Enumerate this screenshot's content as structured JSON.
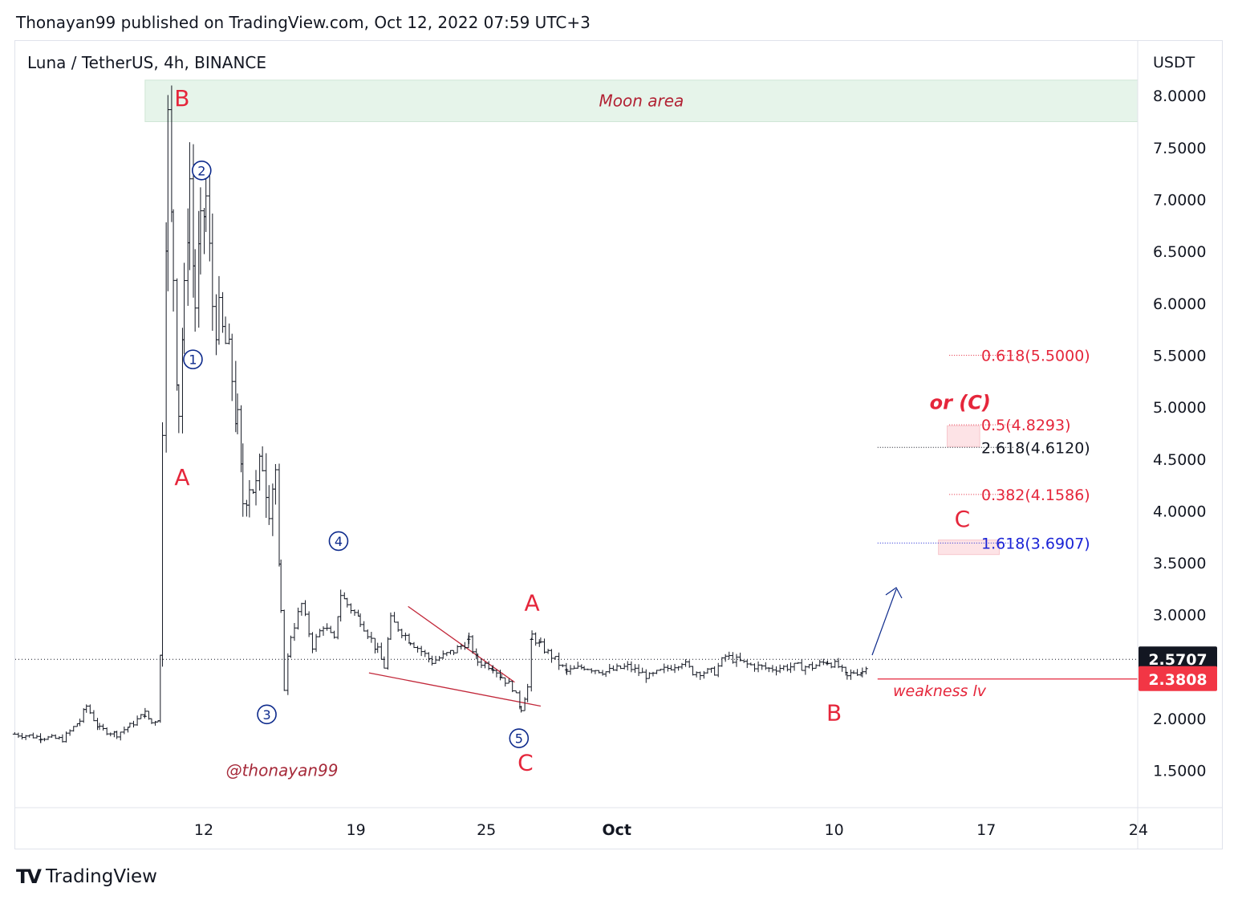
{
  "header": {
    "published_line": "Thonayan99 published on TradingView.com, Oct 12, 2022 07:59 UTC+3"
  },
  "symbol": {
    "title": "Luna / TetherUS, 4h, BINANCE"
  },
  "brand": {
    "name": "TradingView"
  },
  "colors": {
    "red": "#e5263b",
    "blue": "#0d2a8c",
    "zone_green": "#e6f4ea",
    "zone_pink": "#fde3e6",
    "dark_label_bg": "#131722",
    "red_label_bg": "#f23645"
  },
  "chart_data": {
    "type": "candlestick",
    "currency_label": "USDT",
    "y_ticks": [
      "8.0000",
      "7.5000",
      "7.0000",
      "6.5000",
      "6.0000",
      "5.5000",
      "5.0000",
      "4.5000",
      "4.0000",
      "3.5000",
      "3.0000",
      "2.5000",
      "2.0000",
      "1.5000"
    ],
    "y_tick_values": [
      8.0,
      7.5,
      7.0,
      6.5,
      6.0,
      5.5,
      5.0,
      4.5,
      4.0,
      3.5,
      3.0,
      2.5,
      2.0,
      1.5
    ],
    "ylim": [
      1.0,
      8.3
    ],
    "x_ticks": [
      "12",
      "19",
      "25",
      "Oct",
      "10",
      "17",
      "24"
    ],
    "x_tick_days": [
      12,
      19,
      25,
      31,
      41,
      48,
      55
    ],
    "xlim_days": [
      3.3,
      56.0
    ],
    "price_labels": [
      {
        "text": "2.5707",
        "value": 2.5707,
        "style": "dark"
      },
      {
        "text": "2.3808",
        "value": 2.3808,
        "style": "red"
      }
    ],
    "price_series": [
      {
        "day": 3.3,
        "price": 1.85
      },
      {
        "day": 4.5,
        "price": 1.82
      },
      {
        "day": 5.5,
        "price": 1.8
      },
      {
        "day": 6.3,
        "price": 1.98
      },
      {
        "day": 6.6,
        "price": 2.12
      },
      {
        "day": 7.2,
        "price": 1.9
      },
      {
        "day": 8.0,
        "price": 1.85
      },
      {
        "day": 8.6,
        "price": 1.93
      },
      {
        "day": 9.3,
        "price": 2.05
      },
      {
        "day": 9.6,
        "price": 1.96
      },
      {
        "day": 9.9,
        "price": 2.0
      },
      {
        "day": 10.0,
        "price": 2.6
      },
      {
        "day": 10.1,
        "price": 4.9
      },
      {
        "day": 10.35,
        "price": 7.7
      },
      {
        "day": 10.6,
        "price": 6.3
      },
      {
        "day": 10.85,
        "price": 5.0
      },
      {
        "day": 11.1,
        "price": 6.0
      },
      {
        "day": 11.35,
        "price": 7.2
      },
      {
        "day": 11.6,
        "price": 6.0
      },
      {
        "day": 11.85,
        "price": 6.6
      },
      {
        "day": 12.1,
        "price": 7.0
      },
      {
        "day": 12.4,
        "price": 6.0
      },
      {
        "day": 12.7,
        "price": 5.8
      },
      {
        "day": 13.0,
        "price": 5.6
      },
      {
        "day": 13.3,
        "price": 5.3
      },
      {
        "day": 13.55,
        "price": 4.8
      },
      {
        "day": 13.8,
        "price": 4.1
      },
      {
        "day": 14.1,
        "price": 4.3
      },
      {
        "day": 14.4,
        "price": 4.2
      },
      {
        "day": 14.7,
        "price": 4.5
      },
      {
        "day": 15.0,
        "price": 4.1
      },
      {
        "day": 15.3,
        "price": 4.4
      },
      {
        "day": 15.55,
        "price": 3.0
      },
      {
        "day": 15.7,
        "price": 2.3
      },
      {
        "day": 16.0,
        "price": 2.8
      },
      {
        "day": 16.5,
        "price": 3.1
      },
      {
        "day": 17.0,
        "price": 2.7
      },
      {
        "day": 17.5,
        "price": 2.9
      },
      {
        "day": 18.0,
        "price": 2.75
      },
      {
        "day": 18.3,
        "price": 3.2
      },
      {
        "day": 18.6,
        "price": 3.1
      },
      {
        "day": 19.2,
        "price": 2.95
      },
      {
        "day": 20.0,
        "price": 2.65
      },
      {
        "day": 20.3,
        "price": 2.5
      },
      {
        "day": 20.6,
        "price": 2.95
      },
      {
        "day": 21.5,
        "price": 2.75
      },
      {
        "day": 22.5,
        "price": 2.55
      },
      {
        "day": 23.5,
        "price": 2.65
      },
      {
        "day": 24.2,
        "price": 2.75
      },
      {
        "day": 24.6,
        "price": 2.55
      },
      {
        "day": 25.3,
        "price": 2.5
      },
      {
        "day": 25.7,
        "price": 2.4
      },
      {
        "day": 26.2,
        "price": 2.3
      },
      {
        "day": 26.6,
        "price": 2.1
      },
      {
        "day": 26.9,
        "price": 2.3
      },
      {
        "day": 27.1,
        "price": 2.8
      },
      {
        "day": 27.5,
        "price": 2.7
      },
      {
        "day": 28.0,
        "price": 2.6
      },
      {
        "day": 28.7,
        "price": 2.45
      },
      {
        "day": 29.5,
        "price": 2.5
      },
      {
        "day": 30.5,
        "price": 2.45
      },
      {
        "day": 31.5,
        "price": 2.5
      },
      {
        "day": 32.5,
        "price": 2.4
      },
      {
        "day": 33.5,
        "price": 2.5
      },
      {
        "day": 34.0,
        "price": 2.55
      },
      {
        "day": 34.5,
        "price": 2.45
      },
      {
        "day": 35.5,
        "price": 2.45
      },
      {
        "day": 36.0,
        "price": 2.6
      },
      {
        "day": 37.0,
        "price": 2.52
      },
      {
        "day": 38.0,
        "price": 2.48
      },
      {
        "day": 39.0,
        "price": 2.5
      },
      {
        "day": 40.0,
        "price": 2.5
      },
      {
        "day": 40.7,
        "price": 2.55
      },
      {
        "day": 41.2,
        "price": 2.5
      },
      {
        "day": 41.6,
        "price": 2.4
      },
      {
        "day": 41.9,
        "price": 2.45
      },
      {
        "day": 42.3,
        "price": 2.45
      },
      {
        "day": 42.6,
        "price": 2.57
      }
    ],
    "zones": [
      {
        "label": "Moon area",
        "from": 7.75,
        "to": 8.15,
        "color": "zone_green",
        "x_from_day": 9.3,
        "x_to_day": 56.0
      }
    ],
    "target_boxes": [
      {
        "from": 4.62,
        "to": 4.82,
        "x_from_day": 46.2,
        "x_to_day": 47.7
      },
      {
        "from": 3.58,
        "to": 3.72,
        "x_from_day": 45.8,
        "x_to_day": 48.6
      }
    ],
    "fib_levels": [
      {
        "label": "0.618(5.5000)",
        "value": 5.5,
        "color": "red",
        "x_from_day": 46.3,
        "x_to_day": 49.3
      },
      {
        "label": "0.5(4.8293)",
        "value": 4.8293,
        "color": "red",
        "x_from_day": 46.3,
        "x_to_day": 49.3
      },
      {
        "label": "2.618(4.6120)",
        "value": 4.612,
        "color": "black",
        "x_from_day": 43.0,
        "x_to_day": 49.3
      },
      {
        "label": "0.382(4.1586)",
        "value": 4.1586,
        "color": "red",
        "x_from_day": 46.3,
        "x_to_day": 49.3
      },
      {
        "label": "1.618(3.6907)",
        "value": 3.6907,
        "color": "blue",
        "x_from_day": 43.0,
        "x_to_day": 49.3
      }
    ],
    "current_price_line": 2.5707,
    "weakness_line": {
      "label": "weakness lv",
      "value": 2.3808,
      "x_from_day": 43.0
    },
    "wave_labels": [
      {
        "text": "B",
        "color": "red",
        "day": 11.0,
        "price": 7.9
      },
      {
        "text": "A",
        "color": "red",
        "day": 11.0,
        "price": 4.25
      },
      {
        "text": "A",
        "color": "red",
        "day": 27.1,
        "price": 3.04
      },
      {
        "text": "C",
        "color": "red",
        "day": 26.8,
        "price": 1.5
      },
      {
        "text": "B",
        "color": "red",
        "day": 41.0,
        "price": 1.98
      },
      {
        "text": "C",
        "color": "red",
        "day": 46.9,
        "price": 3.85
      },
      {
        "text": "or (C)",
        "color": "red",
        "day": 46.8,
        "price": 4.98,
        "style": "italic-bold"
      }
    ],
    "sub_wave_labels": [
      {
        "text": "1",
        "day": 11.5,
        "price": 5.46
      },
      {
        "text": "2",
        "day": 11.9,
        "price": 7.28
      },
      {
        "text": "3",
        "day": 14.9,
        "price": 2.04
      },
      {
        "text": "4",
        "day": 18.2,
        "price": 3.71
      },
      {
        "text": "5",
        "day": 26.5,
        "price": 1.81
      }
    ],
    "annotations": [
      {
        "text": "@thonayan99",
        "day": 15.6,
        "price": 1.5
      }
    ]
  }
}
